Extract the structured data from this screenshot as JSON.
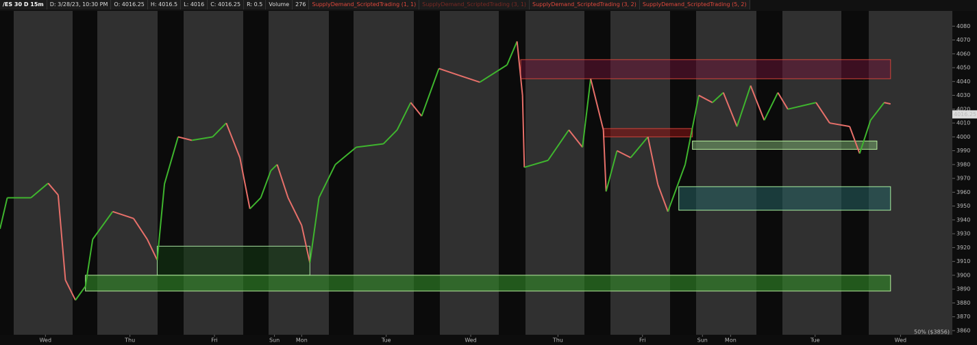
{
  "header": {
    "symbol": "/ES 30 D 15m",
    "fields": [
      "D: 3/28/23, 10:30 PM",
      "O: 4016.25",
      "H: 4016.5",
      "L: 4016",
      "C: 4016.25",
      "R: 0.5"
    ],
    "volume_label": "Volume",
    "volume_value": "276",
    "studies": [
      {
        "text": "SupplyDemand_ScriptedTrading (1, 1)",
        "color": "#e0483c"
      },
      {
        "text": "SupplyDemand_ScriptedTrading (3, 1)",
        "color": "#7a2a24"
      },
      {
        "text": "SupplyDemand_ScriptedTrading (3, 2)",
        "color": "#e0483c"
      },
      {
        "text": "SupplyDemand_ScriptedTrading (5, 2)",
        "color": "#e0483c"
      }
    ]
  },
  "chart_data": {
    "type": "line",
    "x": [
      0,
      8,
      34,
      53,
      64,
      72,
      83,
      94,
      102,
      124,
      147,
      162,
      173,
      181,
      196,
      211,
      234,
      249,
      264,
      275,
      287,
      298,
      305,
      317,
      332,
      341,
      351,
      369,
      392,
      422,
      437,
      452,
      464,
      483,
      505,
      528,
      558,
      569,
      575,
      577,
      603,
      626,
      641,
      650,
      664,
      667,
      679,
      694,
      713,
      724,
      735,
      754,
      769,
      784,
      796,
      811,
      826,
      841,
      856,
      867,
      898,
      913,
      935,
      946,
      958,
      973,
      980
    ],
    "series": [
      {
        "up_color": "#3fb62e",
        "down_color": "#e8706a",
        "values": [
          3933.5,
          3956,
          3956,
          3966.5,
          3958,
          3896.5,
          3882,
          3892,
          3926,
          3946,
          3941,
          3926,
          3911,
          3966,
          4000,
          3997.5,
          4000,
          4010,
          3985,
          3948,
          3956,
          3975.5,
          3980,
          3956,
          3936,
          3909,
          3956,
          3980,
          3992.5,
          3995,
          4005,
          4024.8,
          4015,
          4049.4,
          4044.5,
          4039.5,
          4052,
          4069,
          4030,
          3978,
          3983,
          4005,
          3992.5,
          4042,
          4005,
          3960.6,
          3990,
          3985,
          4000,
          3965.5,
          3946,
          3980,
          4030,
          4024.8,
          4032,
          4007.5,
          4037,
          4012,
          4032,
          4020,
          4024.8,
          4010,
          4007.5,
          3988,
          4012,
          4024.8,
          4023.8
        ]
      }
    ],
    "zones": [
      {
        "start": 573,
        "end": 980,
        "top": 4055.8,
        "bottom": 4042,
        "fill": "rgba(120,20,60,0.45)",
        "stroke": "#d0443a"
      },
      {
        "start": 664,
        "end": 762,
        "top": 4006,
        "bottom": 4000,
        "fill": "rgba(140,20,20,0.55)",
        "stroke": "#d0443a"
      },
      {
        "start": 762,
        "end": 965,
        "top": 3997,
        "bottom": 3991,
        "fill": "rgba(120,170,110,0.55)",
        "stroke": "#b8f0a0"
      },
      {
        "start": 747,
        "end": 980,
        "top": 3964,
        "bottom": 3947,
        "fill": "rgba(40,100,100,0.55)",
        "stroke": "#a8f0a0"
      },
      {
        "start": 173,
        "end": 341,
        "top": 3921,
        "bottom": 3900,
        "fill": "rgba(20,60,20,0.55)",
        "stroke": "#a8e0a0"
      },
      {
        "start": 94,
        "end": 980,
        "top": 3900,
        "bottom": 3888.6,
        "fill": "rgba(50,140,40,0.6)",
        "stroke": "#b8f0a0"
      }
    ],
    "xlim": [
      0,
      1048
    ],
    "xticks": [
      {
        "value": 50,
        "label": "Wed"
      },
      {
        "value": 143,
        "label": "Thu"
      },
      {
        "value": 236,
        "label": "Fri"
      },
      {
        "value": 302,
        "label": "Sun"
      },
      {
        "value": 332,
        "label": "Mon"
      },
      {
        "value": 425,
        "label": "Tue"
      },
      {
        "value": 518,
        "label": "Wed"
      },
      {
        "value": 614,
        "label": "Thu"
      },
      {
        "value": 707,
        "label": "Fri"
      },
      {
        "value": 773,
        "label": "Sun"
      },
      {
        "value": 804,
        "label": "Mon"
      },
      {
        "value": 897,
        "label": "Tue"
      },
      {
        "value": 991,
        "label": "Wed"
      }
    ],
    "ylim": [
      3857,
      4091
    ],
    "yticks": [
      3860,
      3870,
      3880,
      3890,
      3900,
      3910,
      3920,
      3930,
      3940,
      3950,
      3960,
      3970,
      3980,
      3990,
      4000,
      4010,
      4020,
      4030,
      4040,
      4050,
      4060,
      4070,
      4080
    ],
    "last_price": 4016.25,
    "annotation": "50% ($3856)"
  }
}
